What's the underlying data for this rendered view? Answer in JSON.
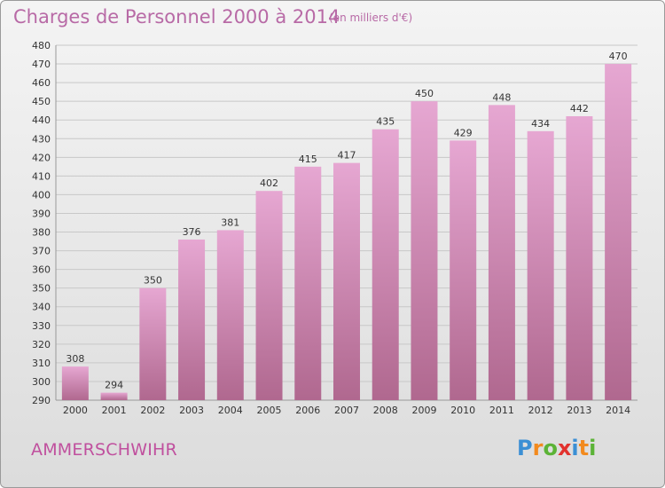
{
  "header": {
    "title": "Charges de Personnel 2000 à 2014",
    "subtitle": "(en milliers d'€)"
  },
  "footer": {
    "place": "AMMERSCHWIHR",
    "logo": "Proxiti",
    "logo_colors": [
      "#3b8fd4",
      "#f28a1e",
      "#5bb336",
      "#e2322e"
    ]
  },
  "chart_data": {
    "type": "bar",
    "categories": [
      "2000",
      "2001",
      "2002",
      "2003",
      "2004",
      "2005",
      "2006",
      "2007",
      "2008",
      "2009",
      "2010",
      "2011",
      "2012",
      "2013",
      "2014"
    ],
    "values": [
      308,
      294,
      350,
      376,
      381,
      402,
      415,
      417,
      435,
      450,
      429,
      448,
      434,
      442,
      470
    ],
    "ylim": [
      290,
      480
    ],
    "yticks": [
      290,
      300,
      310,
      320,
      330,
      340,
      350,
      360,
      370,
      380,
      390,
      400,
      410,
      420,
      430,
      440,
      450,
      460,
      470,
      480
    ],
    "grid": true,
    "bar_color_top": "#e6a7d2",
    "bar_color_bottom": "#b0688f"
  }
}
